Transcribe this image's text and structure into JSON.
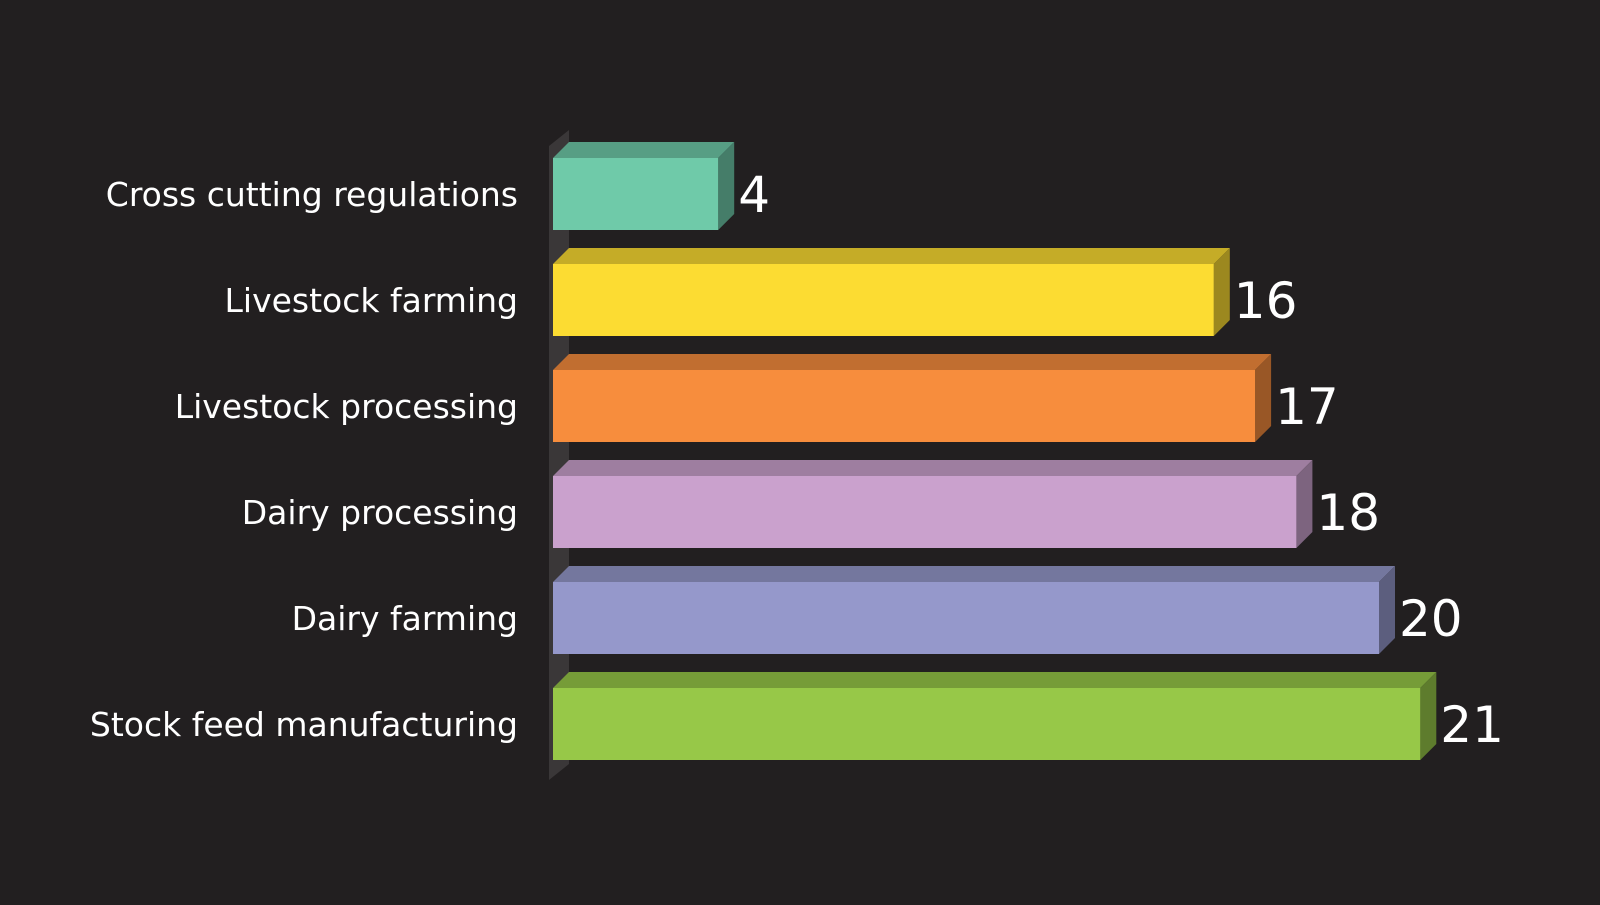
{
  "chart_data": {
    "type": "bar",
    "orientation": "horizontal",
    "style": "3d",
    "categories": [
      "Cross cutting regulations",
      "Livestock farming",
      "Livestock processing",
      "Dairy processing",
      "Dairy farming",
      "Stock feed manufacturing"
    ],
    "values": [
      4,
      16,
      17,
      18,
      20,
      21
    ],
    "data_labels": [
      "4",
      "16",
      "17",
      "18",
      "20",
      "21"
    ],
    "colors": [
      "#6fcaa9",
      "#fcdc32",
      "#f78d3d",
      "#caa1cd",
      "#9598cb",
      "#97c848"
    ],
    "title": "",
    "xlabel": "",
    "ylabel": "",
    "xlim": [
      0,
      21
    ],
    "grid": false,
    "legend": "none",
    "background": "#221f20",
    "text_color": "#ffffff"
  }
}
